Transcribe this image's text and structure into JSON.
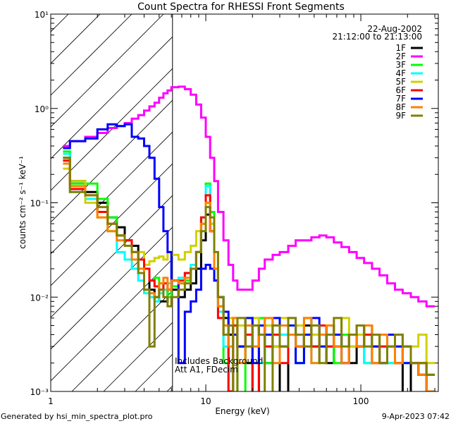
{
  "chart_data": {
    "type": "line",
    "title": "Count Spectra for RHESSI Front Segments",
    "xlabel": "Energy (keV)",
    "ylabel": "counts cm⁻² s⁻¹ keV⁻¹",
    "xscale": "log",
    "yscale": "log",
    "xlim": [
      1,
      316
    ],
    "ylim": [
      0.001,
      10
    ],
    "xticks": [
      {
        "value": 1,
        "label": "1"
      },
      {
        "value": 10,
        "label": "10"
      },
      {
        "value": 100,
        "label": "100"
      }
    ],
    "yticks": [
      {
        "value": 0.001,
        "label": "10⁻³"
      },
      {
        "value": 0.01,
        "label": "10⁻²"
      },
      {
        "value": 0.1,
        "label": "10⁻¹"
      },
      {
        "value": 1,
        "label": "10⁰"
      },
      {
        "value": 10,
        "label": "10¹"
      }
    ],
    "grid": false,
    "legend_position": "top-right",
    "date": "22-Aug-2002",
    "time_range": "21:12:00 to 21:13:00",
    "hatched_region_max_energy": 6.1,
    "annotations": [
      "Includes Background",
      "Att A1, FDecim"
    ],
    "energy_edges": [
      1.2,
      1.33,
      1.67,
      2,
      2.33,
      2.67,
      3,
      3.33,
      3.67,
      4,
      4.33,
      4.67,
      5,
      5.33,
      5.67,
      6,
      6.67,
      7.33,
      8,
      8.67,
      9.33,
      10,
      10.67,
      11.33,
      12,
      13,
      14,
      15,
      16,
      18,
      20,
      22,
      24,
      27,
      30,
      34,
      38,
      43,
      48,
      54,
      60,
      67,
      75,
      84,
      94,
      105,
      118,
      132,
      148,
      166,
      186,
      210,
      235,
      265,
      300
    ],
    "series": [
      {
        "name": "1F",
        "color": "#000000",
        "values": [
          0.3,
          0.17,
          0.13,
          0.1,
          0.07,
          0.055,
          0.04,
          0.035,
          0.02,
          0.02,
          0.012,
          0.01,
          0.009,
          0.009,
          0.012,
          0.012,
          0.01,
          0.012,
          0.014,
          0.02,
          0.04,
          0.075,
          0.05,
          0.02,
          0.01,
          0.006,
          0.004,
          0.005,
          0.003,
          0.002,
          0.0008,
          0.004,
          0.002,
          0.003,
          0.0009,
          0.004,
          0.003,
          0.005,
          0.003,
          0.004,
          0.002,
          0.003,
          0.004,
          0.002,
          0.003,
          0.004,
          0.003,
          0.002,
          0.003,
          0.002,
          0.0008,
          0.002,
          0.0015,
          0.001
        ]
      },
      {
        "name": "2F",
        "color": "#ff00ff",
        "values": [
          0.4,
          0.45,
          0.5,
          0.55,
          0.62,
          0.65,
          0.7,
          0.78,
          0.85,
          0.95,
          1.05,
          1.15,
          1.3,
          1.45,
          1.55,
          1.68,
          1.7,
          1.6,
          1.4,
          1.1,
          0.8,
          0.5,
          0.3,
          0.17,
          0.08,
          0.04,
          0.022,
          0.015,
          0.012,
          0.012,
          0.015,
          0.02,
          0.025,
          0.028,
          0.03,
          0.035,
          0.04,
          0.04,
          0.043,
          0.045,
          0.043,
          0.038,
          0.034,
          0.03,
          0.026,
          0.023,
          0.02,
          0.017,
          0.014,
          0.012,
          0.011,
          0.01,
          0.009,
          0.008
        ]
      },
      {
        "name": "3F",
        "color": "#00ff00",
        "values": [
          0.35,
          0.16,
          0.16,
          0.11,
          0.07,
          0.045,
          0.04,
          0.03,
          0.02,
          0.02,
          0.015,
          0.016,
          0.014,
          0.012,
          0.01,
          0.013,
          0.014,
          0.015,
          0.02,
          0.03,
          0.06,
          0.16,
          0.08,
          0.02,
          0.008,
          0.002,
          0.006,
          0.004,
          0.0008,
          0.005,
          0.003,
          0.006,
          0.002,
          0.004,
          0.003,
          0.005,
          0.002,
          0.006,
          0.004,
          0.003,
          0.005,
          0.002,
          0.004,
          0.003,
          0.005,
          0.002,
          0.004,
          0.003,
          0.002,
          0.004,
          0.003,
          0.002,
          0.002,
          0.0015
        ]
      },
      {
        "name": "4F",
        "color": "#00ffff",
        "values": [
          0.33,
          0.13,
          0.11,
          0.08,
          0.05,
          0.03,
          0.025,
          0.02,
          0.015,
          0.011,
          0.01,
          0.009,
          0.011,
          0.012,
          0.014,
          0.015,
          0.016,
          0.018,
          0.022,
          0.03,
          0.07,
          0.15,
          0.06,
          0.02,
          0.007,
          0.003,
          0.0008,
          0.005,
          0.003,
          0.004,
          0.006,
          0.002,
          0.003,
          0.005,
          0.004,
          0.006,
          0.003,
          0.004,
          0.002,
          0.005,
          0.003,
          0.004,
          0.002,
          0.003,
          0.005,
          0.002,
          0.003,
          0.004,
          0.002,
          0.003,
          0.002,
          0.002,
          0.0015,
          0.001
        ]
      },
      {
        "name": "5F",
        "color": "#d0d000",
        "values": [
          0.23,
          0.17,
          0.1,
          0.07,
          0.05,
          0.045,
          0.04,
          0.03,
          0.03,
          0.022,
          0.024,
          0.026,
          0.027,
          0.025,
          0.03,
          0.028,
          0.025,
          0.03,
          0.035,
          0.05,
          0.06,
          0.1,
          0.06,
          0.03,
          0.01,
          0.005,
          0.006,
          0.004,
          0.005,
          0.003,
          0.006,
          0.004,
          0.005,
          0.003,
          0.006,
          0.004,
          0.005,
          0.003,
          0.004,
          0.005,
          0.003,
          0.004,
          0.006,
          0.003,
          0.004,
          0.005,
          0.003,
          0.004,
          0.003,
          0.004,
          0.003,
          0.003,
          0.004,
          0.002
        ]
      },
      {
        "name": "6F",
        "color": "#ff0000",
        "values": [
          0.28,
          0.14,
          0.12,
          0.08,
          0.06,
          0.045,
          0.04,
          0.03,
          0.025,
          0.02,
          0.015,
          0.013,
          0.012,
          0.014,
          0.012,
          0.015,
          0.015,
          0.018,
          0.02,
          0.03,
          0.07,
          0.12,
          0.05,
          0.015,
          0.006,
          0.004,
          0.001,
          0.005,
          0.003,
          0.004,
          0.0009,
          0.005,
          0.003,
          0.004,
          0.002,
          0.005,
          0.003,
          0.004,
          0.003,
          0.005,
          0.003,
          0.004,
          0.002,
          0.004,
          0.003,
          0.004,
          0.002,
          0.003,
          0.004,
          0.002,
          0.003,
          0.002,
          0.002,
          0.0015
        ]
      },
      {
        "name": "7F",
        "color": "#0000ff",
        "values": [
          0.38,
          0.45,
          0.48,
          0.6,
          0.68,
          0.65,
          0.68,
          0.5,
          0.48,
          0.4,
          0.3,
          0.18,
          0.09,
          0.05,
          0.03,
          0.015,
          0.002,
          0.007,
          0.009,
          0.012,
          0.02,
          0.022,
          0.02,
          0.015,
          0.01,
          0.007,
          0.005,
          0.004,
          0.003,
          0.006,
          0.002,
          0.005,
          0.004,
          0.006,
          0.003,
          0.005,
          0.002,
          0.004,
          0.006,
          0.003,
          0.005,
          0.004,
          0.002,
          0.004,
          0.003,
          0.005,
          0.003,
          0.002,
          0.004,
          0.003,
          0.002,
          0.002,
          0.0015,
          0.001
        ]
      },
      {
        "name": "8F",
        "color": "#ff8000",
        "values": [
          0.26,
          0.15,
          0.12,
          0.07,
          0.05,
          0.04,
          0.035,
          0.025,
          0.02,
          0.012,
          0.011,
          0.01,
          0.014,
          0.016,
          0.012,
          0.015,
          0.014,
          0.016,
          0.02,
          0.03,
          0.06,
          0.1,
          0.05,
          0.02,
          0.008,
          0.005,
          0.003,
          0.006,
          0.002,
          0.005,
          0.003,
          0.004,
          0.006,
          0.002,
          0.005,
          0.004,
          0.003,
          0.006,
          0.002,
          0.004,
          0.005,
          0.003,
          0.002,
          0.004,
          0.003,
          0.005,
          0.002,
          0.004,
          0.003,
          0.002,
          0.003,
          0.002,
          0.0015,
          0.001
        ]
      },
      {
        "name": "9F",
        "color": "#808000",
        "values": [
          0.3,
          0.13,
          0.12,
          0.09,
          0.06,
          0.045,
          0.035,
          0.03,
          0.018,
          0.012,
          0.003,
          0.01,
          0.012,
          0.01,
          0.008,
          0.01,
          0.012,
          0.014,
          0.02,
          0.03,
          0.05,
          0.09,
          0.07,
          0.03,
          0.01,
          0.004,
          0.005,
          0.0008,
          0.006,
          0.003,
          0.005,
          0.004,
          0.0008,
          0.005,
          0.003,
          0.006,
          0.004,
          0.003,
          0.005,
          0.002,
          0.004,
          0.006,
          0.003,
          0.004,
          0.005,
          0.003,
          0.004,
          0.002,
          0.003,
          0.004,
          0.003,
          0.002,
          0.002,
          0.0015
        ]
      }
    ]
  },
  "footer": {
    "generated_by": "Generated by hsi_min_spectra_plot.pro",
    "timestamp": "9-Apr-2023 07:42"
  }
}
